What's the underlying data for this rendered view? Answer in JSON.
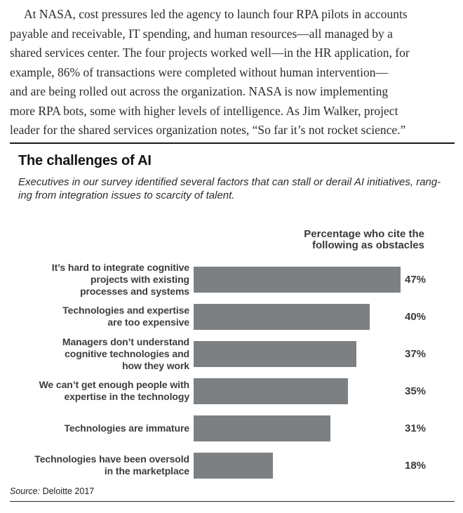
{
  "article": {
    "paragraph": "At NASA, cost pressures led the agency to launch four RPA pilots in accounts\npayable and receivable, IT spending, and human resources—all managed by a\nshared services center. The four projects worked well—in the HR application, for\nexample, 86% of transactions were completed without human intervention—\nand are being rolled out across the organization. NASA is now implementing\nmore RPA bots, some with higher levels of intelligence. As Jim Walker, project\nleader for the shared services organization notes, “So far it’s not rocket science.”"
  },
  "chart_data": {
    "type": "bar",
    "orientation": "horizontal",
    "title": "The challenges of AI",
    "subtitle": "Executives in our survey identified several factors that can stall or derail AI initiatives, rang-\ning from integration issues to scarcity of talent.",
    "column_header": "Percentage who cite the\nfollowing as obstacles",
    "categories": [
      "It’s hard to integrate cognitive\nprojects with existing\nprocesses and systems",
      "Technologies and expertise\nare too expensive",
      "Managers don’t understand\ncognitive technologies and\nhow they work",
      "We can’t get enough people with\nexpertise in the technology",
      "Technologies are immature",
      "Technologies have been oversold\nin the marketplace"
    ],
    "values": [
      47,
      40,
      37,
      35,
      31,
      18
    ],
    "unit": "%",
    "xlim": [
      0,
      50
    ],
    "grid": "off",
    "bar_color": "#7d8083",
    "source": {
      "label": "Source:",
      "text": "Deloitte 2017"
    }
  }
}
